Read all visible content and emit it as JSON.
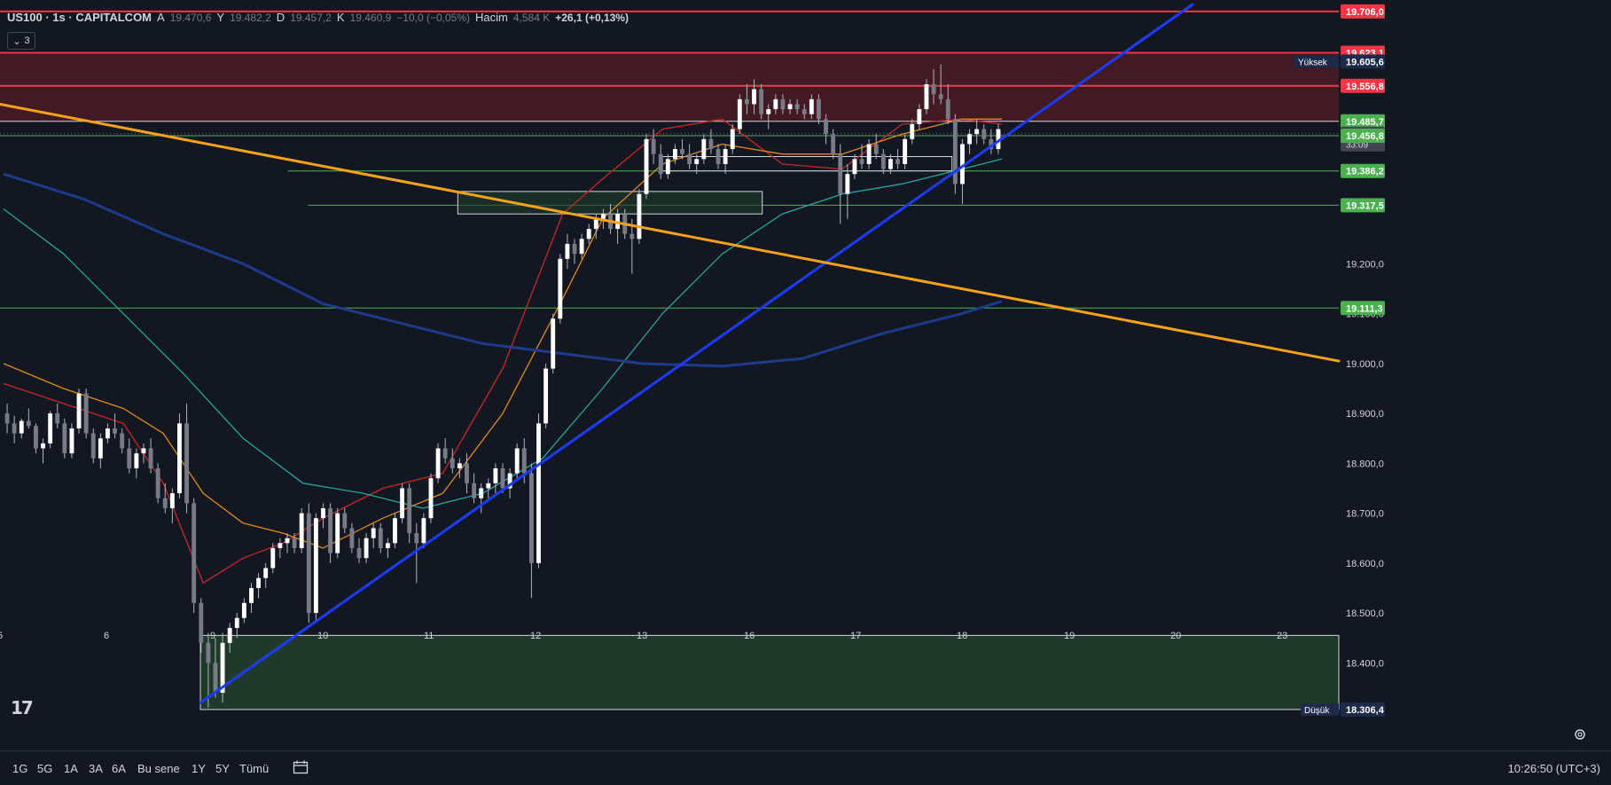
{
  "header": {
    "symbol": "US100 · 1s · CAPITALCOM",
    "open_label": "A",
    "open": "19.470,6",
    "high_label": "Y",
    "high": "19.482,2",
    "low_label": "D",
    "low": "19.457,2",
    "close_label": "K",
    "close": "19.460,9",
    "change": "−10,0 (−0,05%)",
    "volume_label": "Hacim",
    "volume": "4,584 K",
    "volume_change": "+26,1 (+0,13%)"
  },
  "indicator_toggle": {
    "count": "3",
    "icon": "chevron-down-icon"
  },
  "timeframes": [
    "1G",
    "5G",
    "1A",
    "3A",
    "6A",
    "Bu sene",
    "1Y",
    "5Y",
    "Tümü"
  ],
  "clock": "10:26:50 (UTC+3)",
  "colors": {
    "background": "#131722",
    "candle": "#d1d4dc",
    "resistance_zone": "#4a1b25",
    "support_zone": "#1f3a2a",
    "red_line": "#f23645",
    "green_line": "#4caf50",
    "blue_trend": "#1e3cff",
    "orange_trend": "#f7a21b",
    "ma_red": "#c62828",
    "ma_orange": "#e08a1b",
    "ma_teal": "#26a69a",
    "ma_navy": "#1e3a8a"
  },
  "chart_data": {
    "type": "candlestick",
    "ylim": [
      18260,
      19720
    ],
    "x_ticks": [
      "5",
      "6",
      "9",
      "10",
      "11",
      "12",
      "13",
      "16",
      "17",
      "18",
      "19",
      "20",
      "23"
    ],
    "y_ticks": [
      "19.200,0",
      "19.100,0",
      "19.000,0",
      "18.900,0",
      "18.800,0",
      "18.700,0",
      "18.600,0",
      "18.500,0",
      "18.400,0"
    ],
    "price_labels": [
      {
        "value": 19706.0,
        "text": "19.706,0",
        "style": "red"
      },
      {
        "value": 19623.1,
        "text": "19.623,1",
        "style": "red"
      },
      {
        "value": 19605.6,
        "text": "19.605,6",
        "style": "navy",
        "tag": "Yüksek"
      },
      {
        "value": 19556.8,
        "text": "19.556,8",
        "style": "red"
      },
      {
        "value": 19485.7,
        "text": "19.485,7",
        "style": "green"
      },
      {
        "value": 19460.9,
        "text": "19.460,9",
        "style": "gray",
        "sub": "33:09"
      },
      {
        "value": 19456.8,
        "text": "19.456,8",
        "style": "green"
      },
      {
        "value": 19386.2,
        "text": "19.386,2",
        "style": "green"
      },
      {
        "value": 19317.5,
        "text": "19.317,5",
        "style": "green"
      },
      {
        "value": 19111.3,
        "text": "19.111,3",
        "style": "green"
      },
      {
        "value": 18306.4,
        "text": "18.306,4",
        "style": "navy",
        "tag": "Düşük"
      }
    ],
    "resistance_zone": [
      19485.7,
      19623.1
    ],
    "support_zone": [
      18306.4,
      18455
    ],
    "candles_ohlc": [
      [
        18900,
        18920,
        18860,
        18880
      ],
      [
        18880,
        18895,
        18840,
        18860
      ],
      [
        18860,
        18890,
        18850,
        18885
      ],
      [
        18885,
        18910,
        18870,
        18875
      ],
      [
        18875,
        18880,
        18820,
        18830
      ],
      [
        18830,
        18850,
        18800,
        18840
      ],
      [
        18840,
        18905,
        18830,
        18900
      ],
      [
        18900,
        18920,
        18870,
        18880
      ],
      [
        18880,
        18890,
        18810,
        18820
      ],
      [
        18820,
        18880,
        18810,
        18870
      ],
      [
        18870,
        18950,
        18860,
        18940
      ],
      [
        18940,
        18950,
        18850,
        18860
      ],
      [
        18860,
        18870,
        18800,
        18810
      ],
      [
        18810,
        18860,
        18790,
        18850
      ],
      [
        18850,
        18880,
        18840,
        18870
      ],
      [
        18870,
        18900,
        18850,
        18860
      ],
      [
        18860,
        18870,
        18820,
        18830
      ],
      [
        18830,
        18850,
        18780,
        18790
      ],
      [
        18790,
        18830,
        18770,
        18820
      ],
      [
        18820,
        18840,
        18800,
        18830
      ],
      [
        18830,
        18850,
        18780,
        18790
      ],
      [
        18790,
        18800,
        18720,
        18730
      ],
      [
        18730,
        18760,
        18700,
        18710
      ],
      [
        18710,
        18750,
        18680,
        18740
      ],
      [
        18740,
        18900,
        18730,
        18880
      ],
      [
        18880,
        18920,
        18700,
        18720
      ],
      [
        18720,
        18730,
        18500,
        18520
      ],
      [
        18520,
        18530,
        18420,
        18440
      ],
      [
        18440,
        18460,
        18310,
        18400
      ],
      [
        18400,
        18450,
        18330,
        18340
      ],
      [
        18340,
        18460,
        18320,
        18440
      ],
      [
        18440,
        18480,
        18420,
        18470
      ],
      [
        18470,
        18500,
        18450,
        18490
      ],
      [
        18490,
        18530,
        18480,
        18520
      ],
      [
        18520,
        18560,
        18500,
        18550
      ],
      [
        18550,
        18580,
        18530,
        18570
      ],
      [
        18570,
        18600,
        18550,
        18590
      ],
      [
        18590,
        18640,
        18580,
        18630
      ],
      [
        18630,
        18650,
        18610,
        18640
      ],
      [
        18640,
        18660,
        18620,
        18650
      ],
      [
        18650,
        18660,
        18620,
        18630
      ],
      [
        18630,
        18710,
        18620,
        18700
      ],
      [
        18700,
        18720,
        18480,
        18500
      ],
      [
        18500,
        18700,
        18480,
        18690
      ],
      [
        18690,
        18720,
        18670,
        18710
      ],
      [
        18710,
        18720,
        18600,
        18620
      ],
      [
        18620,
        18710,
        18610,
        18700
      ],
      [
        18700,
        18710,
        18660,
        18670
      ],
      [
        18670,
        18680,
        18620,
        18630
      ],
      [
        18630,
        18650,
        18600,
        18610
      ],
      [
        18610,
        18660,
        18600,
        18650
      ],
      [
        18650,
        18680,
        18630,
        18670
      ],
      [
        18670,
        18680,
        18620,
        18630
      ],
      [
        18630,
        18650,
        18610,
        18640
      ],
      [
        18640,
        18700,
        18630,
        18690
      ],
      [
        18690,
        18760,
        18680,
        18750
      ],
      [
        18750,
        18760,
        18640,
        18660
      ],
      [
        18660,
        18680,
        18560,
        18640
      ],
      [
        18640,
        18700,
        18630,
        18690
      ],
      [
        18690,
        18780,
        18680,
        18770
      ],
      [
        18770,
        18840,
        18760,
        18830
      ],
      [
        18830,
        18850,
        18800,
        18810
      ],
      [
        18810,
        18830,
        18780,
        18790
      ],
      [
        18790,
        18810,
        18770,
        18800
      ],
      [
        18800,
        18820,
        18740,
        18760
      ],
      [
        18760,
        18780,
        18720,
        18730
      ],
      [
        18730,
        18760,
        18700,
        18750
      ],
      [
        18750,
        18770,
        18730,
        18760
      ],
      [
        18760,
        18800,
        18740,
        18790
      ],
      [
        18790,
        18800,
        18740,
        18750
      ],
      [
        18750,
        18790,
        18730,
        18780
      ],
      [
        18780,
        18840,
        18770,
        18830
      ],
      [
        18830,
        18850,
        18760,
        18780
      ],
      [
        18780,
        18800,
        18530,
        18600
      ],
      [
        18600,
        18900,
        18590,
        18880
      ],
      [
        18880,
        19000,
        18870,
        18990
      ],
      [
        18990,
        19100,
        18980,
        19090
      ],
      [
        19090,
        19220,
        19080,
        19210
      ],
      [
        19210,
        19260,
        19190,
        19240
      ],
      [
        19240,
        19250,
        19200,
        19220
      ],
      [
        19220,
        19260,
        19210,
        19250
      ],
      [
        19250,
        19280,
        19240,
        19270
      ],
      [
        19270,
        19300,
        19250,
        19290
      ],
      [
        19290,
        19310,
        19270,
        19300
      ],
      [
        19300,
        19320,
        19260,
        19270
      ],
      [
        19270,
        19310,
        19240,
        19300
      ],
      [
        19300,
        19310,
        19250,
        19260
      ],
      [
        19260,
        19290,
        19180,
        19250
      ],
      [
        19250,
        19350,
        19240,
        19340
      ],
      [
        19340,
        19460,
        19330,
        19450
      ],
      [
        19450,
        19470,
        19400,
        19420
      ],
      [
        19420,
        19440,
        19370,
        19380
      ],
      [
        19380,
        19420,
        19370,
        19410
      ],
      [
        19410,
        19440,
        19400,
        19430
      ],
      [
        19430,
        19450,
        19410,
        19420
      ],
      [
        19420,
        19440,
        19390,
        19400
      ],
      [
        19400,
        19420,
        19380,
        19410
      ],
      [
        19410,
        19460,
        19400,
        19450
      ],
      [
        19450,
        19470,
        19420,
        19430
      ],
      [
        19430,
        19440,
        19390,
        19400
      ],
      [
        19400,
        19440,
        19380,
        19430
      ],
      [
        19430,
        19480,
        19420,
        19470
      ],
      [
        19470,
        19540,
        19460,
        19530
      ],
      [
        19530,
        19560,
        19500,
        19520
      ],
      [
        19520,
        19570,
        19500,
        19550
      ],
      [
        19550,
        19560,
        19490,
        19500
      ],
      [
        19500,
        19520,
        19470,
        19510
      ],
      [
        19510,
        19540,
        19500,
        19530
      ],
      [
        19530,
        19540,
        19500,
        19510
      ],
      [
        19510,
        19530,
        19500,
        19520
      ],
      [
        19520,
        19530,
        19500,
        19510
      ],
      [
        19510,
        19520,
        19490,
        19500
      ],
      [
        19500,
        19540,
        19490,
        19530
      ],
      [
        19530,
        19540,
        19480,
        19490
      ],
      [
        19490,
        19500,
        19440,
        19460
      ],
      [
        19460,
        19470,
        19410,
        19420
      ],
      [
        19420,
        19440,
        19280,
        19340
      ],
      [
        19340,
        19400,
        19290,
        19380
      ],
      [
        19380,
        19420,
        19370,
        19410
      ],
      [
        19410,
        19440,
        19390,
        19400
      ],
      [
        19400,
        19450,
        19390,
        19440
      ],
      [
        19440,
        19460,
        19410,
        19420
      ],
      [
        19420,
        19430,
        19380,
        19390
      ],
      [
        19390,
        19420,
        19380,
        19410
      ],
      [
        19410,
        19430,
        19390,
        19400
      ],
      [
        19400,
        19460,
        19390,
        19450
      ],
      [
        19450,
        19490,
        19440,
        19480
      ],
      [
        19480,
        19520,
        19470,
        19510
      ],
      [
        19510,
        19570,
        19500,
        19560
      ],
      [
        19560,
        19590,
        19520,
        19540
      ],
      [
        19540,
        19600,
        19520,
        19530
      ],
      [
        19530,
        19560,
        19480,
        19490
      ],
      [
        19490,
        19500,
        19340,
        19360
      ],
      [
        19360,
        19450,
        19320,
        19440
      ],
      [
        19440,
        19470,
        19420,
        19460
      ],
      [
        19460,
        19490,
        19440,
        19470
      ],
      [
        19470,
        19480,
        19440,
        19450
      ],
      [
        19450,
        19470,
        19420,
        19430
      ],
      [
        19430,
        19480,
        19420,
        19470
      ]
    ],
    "moving_averages": [
      {
        "color": "ma_red",
        "x": [
          0,
          0.06,
          0.12,
          0.16,
          0.2,
          0.24,
          0.28,
          0.32,
          0.38,
          0.44,
          0.5,
          0.56,
          0.6,
          0.66,
          0.72,
          0.78,
          0.84,
          0.9,
          0.96,
          1.0
        ],
        "y": [
          18960,
          18920,
          18880,
          18760,
          18560,
          18610,
          18640,
          18690,
          18750,
          18780,
          18990,
          19300,
          19370,
          19470,
          19490,
          19400,
          19390,
          19480,
          19490,
          19480
        ]
      },
      {
        "color": "ma_orange",
        "x": [
          0,
          0.06,
          0.12,
          0.16,
          0.2,
          0.24,
          0.28,
          0.32,
          0.38,
          0.44,
          0.5,
          0.56,
          0.6,
          0.66,
          0.72,
          0.78,
          0.84,
          0.9,
          0.96,
          1.0
        ],
        "y": [
          19000,
          18950,
          18910,
          18860,
          18740,
          18680,
          18660,
          18630,
          18690,
          18740,
          18900,
          19130,
          19290,
          19400,
          19440,
          19420,
          19420,
          19460,
          19490,
          19490
        ]
      },
      {
        "color": "ma_teal",
        "x": [
          0,
          0.06,
          0.12,
          0.18,
          0.24,
          0.3,
          0.36,
          0.42,
          0.48,
          0.54,
          0.6,
          0.66,
          0.72,
          0.78,
          0.84,
          0.9,
          0.96,
          1.0
        ],
        "y": [
          19310,
          19220,
          19100,
          18980,
          18850,
          18760,
          18740,
          18710,
          18740,
          18810,
          18950,
          19100,
          19220,
          19300,
          19340,
          19360,
          19390,
          19410
        ]
      },
      {
        "color": "ma_navy",
        "x": [
          0,
          0.08,
          0.16,
          0.24,
          0.32,
          0.4,
          0.48,
          0.56,
          0.64,
          0.72,
          0.8,
          0.88,
          0.96,
          1.0
        ],
        "y": [
          19380,
          19330,
          19260,
          19200,
          19120,
          19080,
          19040,
          19020,
          19000,
          18995,
          19010,
          19060,
          19100,
          19125
        ]
      }
    ],
    "trendlines": [
      {
        "color": "blue_trend",
        "from": [
          0.15,
          18320
        ],
        "to": [
          1.0,
          19720
        ]
      },
      {
        "color": "orange_trend",
        "from": [
          0.0,
          19520
        ],
        "to": [
          1.25,
          19005
        ]
      }
    ],
    "horizontal_lines": [
      {
        "value": 19706.0,
        "color": "red_line",
        "from": 0
      },
      {
        "value": 19623.1,
        "color": "red_line",
        "from": 0
      },
      {
        "value": 19556.8,
        "color": "red_line",
        "from": 0
      },
      {
        "value": 19485.7,
        "color": "white",
        "from": 0
      },
      {
        "value": 19456.8,
        "color": "green_line",
        "from": 0
      },
      {
        "value": 19386.2,
        "color": "green_line",
        "from": 0.215
      },
      {
        "value": 19317.5,
        "color": "green_line",
        "from": 0.23
      },
      {
        "value": 19111.3,
        "color": "green_line",
        "from": 0
      }
    ],
    "boxes": [
      {
        "y0": 19386.2,
        "y1": 19415,
        "x0": 0.66,
        "x1": 0.95
      },
      {
        "y0": 19300,
        "y1": 19345,
        "x0": 0.455,
        "x1": 0.76
      }
    ]
  }
}
